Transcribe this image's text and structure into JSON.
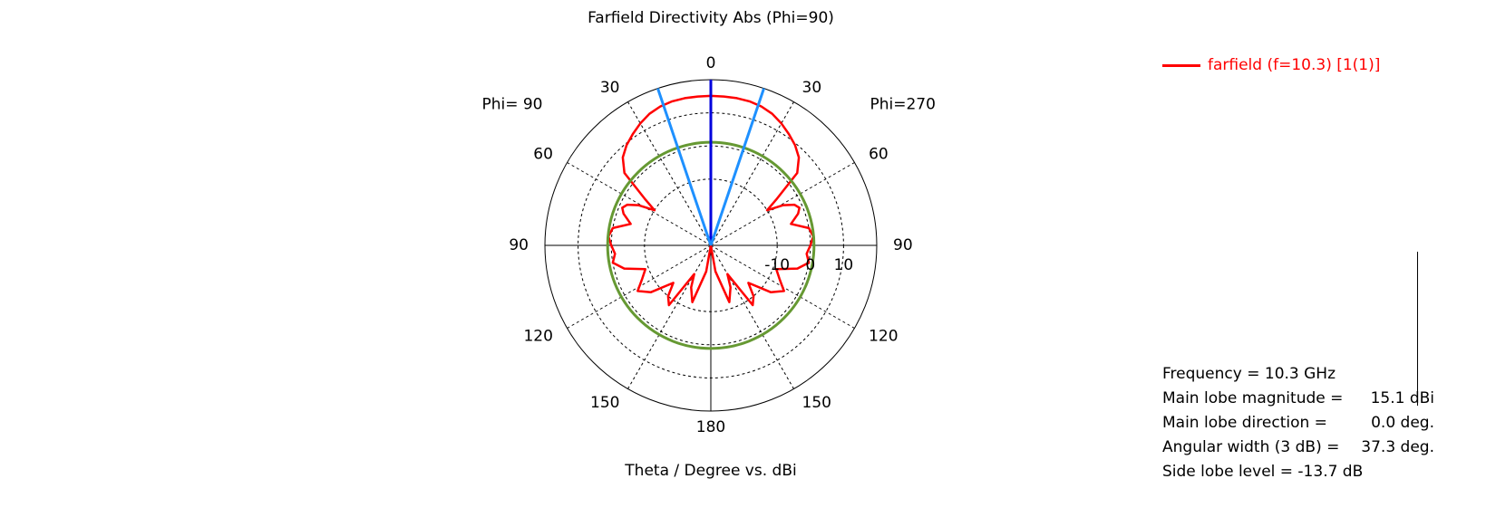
{
  "chart_data": {
    "type": "polar",
    "title": "Farfield Directivity Abs (Phi=90)",
    "xlabel": "Theta / Degree vs. dBi",
    "left_half_label": "Phi= 90",
    "right_half_label": "Phi=270",
    "angle_tick_labels": {
      "left": [
        "0",
        "30",
        "60",
        "90",
        "120",
        "150",
        "180"
      ],
      "right": [
        "30",
        "60",
        "90",
        "120",
        "150"
      ]
    },
    "radial_range_dbi": [
      -30,
      20
    ],
    "radial_tick_labels": [
      "-10",
      "0",
      "10"
    ],
    "radial_tick_values": [
      -10,
      0,
      10
    ],
    "grid": true,
    "legend_position": "top-right",
    "series": [
      {
        "name": "farfield (f=10.3) [1(1)]",
        "color": "#ff0000",
        "theta_deg": [
          -180,
          -170,
          -162,
          -155,
          -150,
          -145,
          -140,
          -135,
          -128,
          -122,
          -116,
          -110,
          -105,
          -100,
          -95,
          -90,
          -85,
          -80,
          -75,
          -70,
          -67,
          -64,
          -61,
          -58,
          -55,
          -50,
          -45,
          -40,
          -35,
          -30,
          -25,
          -20,
          -15,
          -10,
          -5,
          0,
          5,
          10,
          15,
          20,
          25,
          30,
          35,
          40,
          45,
          50,
          55,
          58,
          61,
          64,
          67,
          70,
          75,
          80,
          85,
          90,
          95,
          100,
          105,
          110,
          116,
          122,
          128,
          135,
          140,
          145,
          150,
          155,
          162,
          170,
          180
        ],
        "directivity_dbi": [
          -30,
          -22,
          -12,
          -16,
          -20,
          -8,
          -10,
          -14,
          -7,
          -4,
          -7,
          -9,
          -3,
          0,
          -1,
          0,
          1,
          0,
          -5,
          -2,
          -1,
          -2,
          -5,
          -10,
          -6,
          4,
          7.5,
          9.5,
          11,
          12.5,
          13.8,
          14.6,
          15,
          15.1,
          15.1,
          15.1,
          15.1,
          15.1,
          15,
          14.6,
          13.8,
          12.5,
          11,
          9.5,
          7.5,
          4,
          -6,
          -10,
          -5,
          -2,
          -1,
          -2,
          -5,
          0,
          1,
          0,
          -1,
          0,
          -3,
          -9,
          -7,
          -4,
          -7,
          -14,
          -10,
          -8,
          -20,
          -16,
          -12,
          -22,
          -30
        ]
      },
      {
        "name": "",
        "color": "#669933",
        "theta_deg": [
          -180,
          180
        ],
        "directivity_dbi": [
          1.1,
          1.1
        ]
      }
    ],
    "markers": [
      {
        "type": "main-lobe-direction",
        "theta_deg": 0,
        "color": "#0000dd"
      },
      {
        "type": "3dB-beamwidth",
        "theta_deg": -18.65,
        "color": "#1e90ff"
      },
      {
        "type": "3dB-beamwidth",
        "theta_deg": 18.65,
        "color": "#1e90ff"
      }
    ]
  },
  "stats": [
    {
      "label": "Frequency = 10.3 GHz",
      "value": ""
    },
    {
      "label": "Main lobe magnitude =",
      "value": "15.1 dBi"
    },
    {
      "label": "Main lobe direction =",
      "value": "0.0 deg."
    },
    {
      "label": "Angular width (3 dB) =",
      "value": "37.3 deg."
    },
    {
      "label": "Side lobe level =  -13.7 dB",
      "value": ""
    }
  ]
}
